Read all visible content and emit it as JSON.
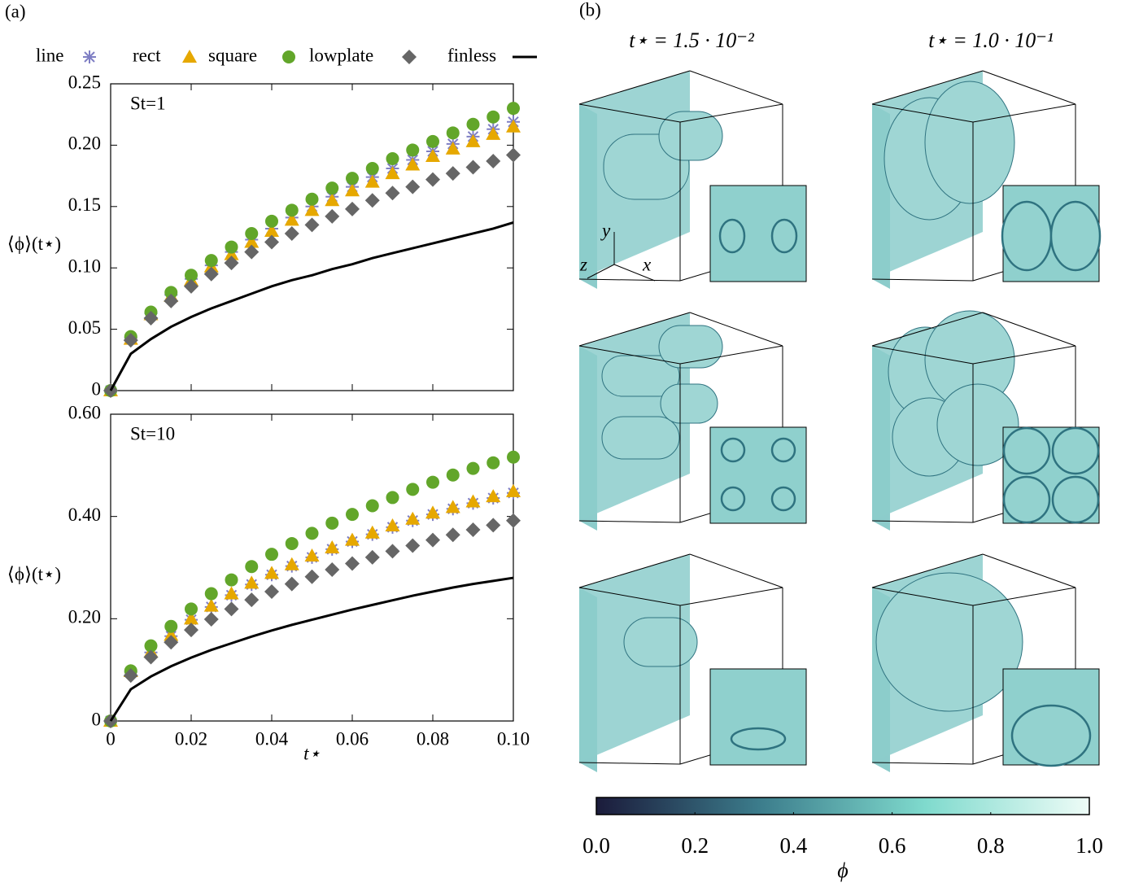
{
  "panel_labels": [
    "(a)",
    "(b)"
  ],
  "chart_data": [
    {
      "type": "scatter",
      "annotation": "St=1",
      "ylabel": "⟨ϕ⟩(t⋆)",
      "x": [
        0,
        0.005,
        0.01,
        0.015,
        0.02,
        0.025,
        0.03,
        0.035,
        0.04,
        0.045,
        0.05,
        0.055,
        0.06,
        0.065,
        0.07,
        0.075,
        0.08,
        0.085,
        0.09,
        0.095,
        0.1
      ],
      "xlim": [
        0,
        0.1
      ],
      "xticks": [
        0,
        0.02,
        0.04,
        0.06,
        0.08,
        0.1
      ],
      "ylim": [
        0,
        0.25
      ],
      "yticks": [
        0,
        0.05,
        {
          "value": 0.1,
          "label": "0.10"
        },
        0.15,
        {
          "value": 0.2,
          "label": "0.20"
        },
        0.25
      ],
      "series": [
        {
          "name": "line",
          "marker": "star",
          "color": "#7f7fc4",
          "values": [
            0,
            0.043,
            0.063,
            0.078,
            0.091,
            0.102,
            0.113,
            0.123,
            0.132,
            0.141,
            0.15,
            0.158,
            0.166,
            0.174,
            0.181,
            0.188,
            0.195,
            0.201,
            0.207,
            0.213,
            0.219
          ]
        },
        {
          "name": "rect",
          "marker": "triangle",
          "color": "#e6a800",
          "values": [
            0,
            0.042,
            0.062,
            0.077,
            0.09,
            0.101,
            0.111,
            0.121,
            0.13,
            0.139,
            0.147,
            0.155,
            0.163,
            0.17,
            0.177,
            0.184,
            0.191,
            0.197,
            0.203,
            0.209,
            0.215
          ]
        },
        {
          "name": "square",
          "marker": "circle",
          "color": "#62a62a",
          "values": [
            0,
            0.044,
            0.064,
            0.08,
            0.094,
            0.106,
            0.117,
            0.128,
            0.138,
            0.147,
            0.156,
            0.165,
            0.173,
            0.181,
            0.189,
            0.196,
            0.203,
            0.21,
            0.217,
            0.223,
            0.23
          ]
        },
        {
          "name": "lowplate",
          "marker": "diamond",
          "color": "#666666",
          "values": [
            0,
            0.041,
            0.059,
            0.073,
            0.085,
            0.095,
            0.104,
            0.113,
            0.121,
            0.128,
            0.135,
            0.142,
            0.148,
            0.155,
            0.161,
            0.166,
            0.172,
            0.177,
            0.182,
            0.187,
            0.192
          ]
        },
        {
          "name": "finless",
          "marker": "none",
          "color": "#000000",
          "values": [
            0,
            0.03,
            0.042,
            0.052,
            0.06,
            0.067,
            0.073,
            0.079,
            0.085,
            0.09,
            0.094,
            0.099,
            0.103,
            0.108,
            0.112,
            0.116,
            0.12,
            0.124,
            0.128,
            0.132,
            0.137
          ]
        }
      ]
    },
    {
      "type": "scatter",
      "annotation": "St=10",
      "ylabel": "⟨ϕ⟩(t⋆)",
      "xlabel": "t⋆",
      "x": [
        0,
        0.005,
        0.01,
        0.015,
        0.02,
        0.025,
        0.03,
        0.035,
        0.04,
        0.045,
        0.05,
        0.055,
        0.06,
        0.065,
        0.07,
        0.075,
        0.08,
        0.085,
        0.09,
        0.095,
        0.1
      ],
      "xlim": [
        0,
        0.1
      ],
      "xticks": [
        0,
        0.02,
        0.04,
        0.06,
        0.08,
        {
          "value": 0.1,
          "label": "0.10"
        }
      ],
      "ylim": [
        0,
        0.6
      ],
      "yticks": [
        0,
        {
          "value": 0.2,
          "label": "0.20"
        },
        {
          "value": 0.4,
          "label": "0.40"
        },
        {
          "value": 0.6,
          "label": "0.60"
        }
      ],
      "series": [
        {
          "marker": "star",
          "color": "#7f7fc4",
          "values": [
            0,
            0.096,
            0.134,
            0.166,
            0.198,
            0.223,
            0.246,
            0.267,
            0.286,
            0.303,
            0.32,
            0.336,
            0.351,
            0.365,
            0.379,
            0.392,
            0.404,
            0.415,
            0.426,
            0.436,
            0.446
          ]
        },
        {
          "marker": "triangle",
          "color": "#e6a800",
          "values": [
            0,
            0.097,
            0.135,
            0.168,
            0.2,
            0.225,
            0.249,
            0.27,
            0.289,
            0.306,
            0.323,
            0.339,
            0.354,
            0.368,
            0.382,
            0.395,
            0.407,
            0.418,
            0.429,
            0.439,
            0.449
          ]
        },
        {
          "marker": "circle",
          "color": "#62a62a",
          "values": [
            0,
            0.098,
            0.147,
            0.185,
            0.219,
            0.249,
            0.276,
            0.302,
            0.326,
            0.347,
            0.367,
            0.387,
            0.404,
            0.421,
            0.437,
            0.453,
            0.467,
            0.481,
            0.494,
            0.505,
            0.516
          ]
        },
        {
          "marker": "diamond",
          "color": "#666666",
          "values": [
            0,
            0.089,
            0.125,
            0.154,
            0.178,
            0.199,
            0.219,
            0.237,
            0.253,
            0.268,
            0.282,
            0.296,
            0.308,
            0.32,
            0.332,
            0.343,
            0.354,
            0.364,
            0.374,
            0.383,
            0.392
          ]
        },
        {
          "marker": "none",
          "color": "#000000",
          "values": [
            0,
            0.062,
            0.087,
            0.107,
            0.124,
            0.139,
            0.152,
            0.165,
            0.177,
            0.188,
            0.198,
            0.208,
            0.218,
            0.227,
            0.236,
            0.245,
            0.253,
            0.261,
            0.268,
            0.274,
            0.28
          ]
        }
      ]
    },
    {
      "type": "colorbar",
      "xlabel": "ϕ",
      "xlim": [
        0,
        1
      ],
      "xticks": [
        {
          "value": 0,
          "label": "0.0"
        },
        0.2,
        0.4,
        0.6,
        0.8,
        {
          "value": 1,
          "label": "1.0"
        }
      ],
      "colors": [
        "#1b1b3b",
        "#3c7d8c",
        "#7fdacd",
        "#eefcf7"
      ]
    }
  ],
  "panel_b": {
    "column_titles": [
      "t⋆ = 1.5 · 10⁻²",
      "t⋆ = 1.0 · 10⁻¹"
    ],
    "axis_labels": [
      "y",
      "x",
      "z"
    ]
  }
}
